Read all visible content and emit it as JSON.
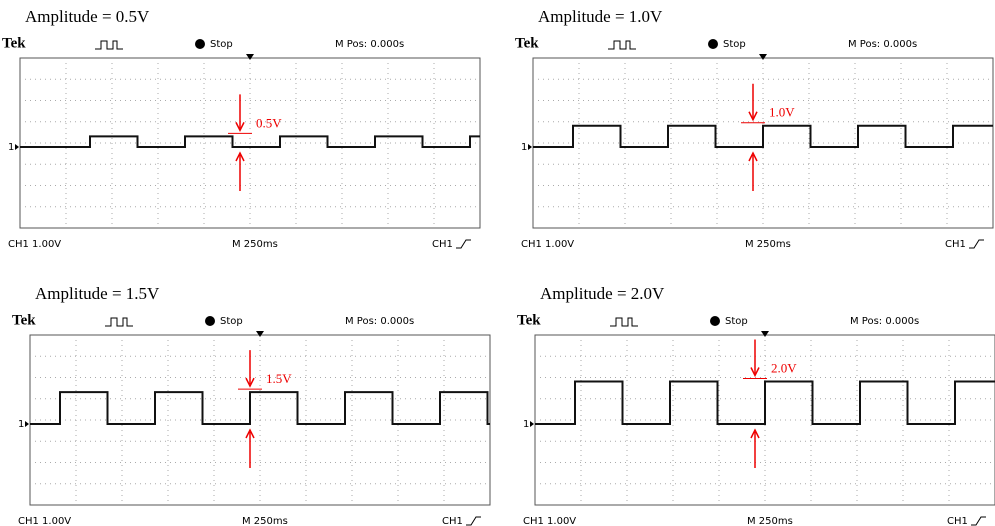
{
  "panels": [
    {
      "title": "Amplitude = 0.5V",
      "brand": "Tek",
      "state": "Stop",
      "mpos": "M Pos: 0.000s",
      "marker": "0.5V",
      "channel_marker": "1",
      "ch_scale": "CH1  1.00V",
      "timebase": "M 250ms",
      "trigger": "CH1"
    },
    {
      "title": "Amplitude = 1.0V",
      "brand": "Tek",
      "state": "Stop",
      "mpos": "M Pos: 0.000s",
      "marker": "1.0V",
      "channel_marker": "1",
      "ch_scale": "CH1  1.00V",
      "timebase": "M 250ms",
      "trigger": "CH1"
    },
    {
      "title": "Amplitude = 1.5V",
      "brand": "Tek",
      "state": "Stop",
      "mpos": "M Pos: 0.000s",
      "marker": "1.5V",
      "channel_marker": "1",
      "ch_scale": "CH1  1.00V",
      "timebase": "M 250ms",
      "trigger": "CH1"
    },
    {
      "title": "Amplitude = 2.0V",
      "brand": "Tek",
      "state": "Stop",
      "mpos": "M Pos: 0.000s",
      "marker": "2.0V",
      "channel_marker": "1",
      "ch_scale": "CH1  1.00V",
      "timebase": "M 250ms",
      "trigger": "CH1"
    }
  ]
}
